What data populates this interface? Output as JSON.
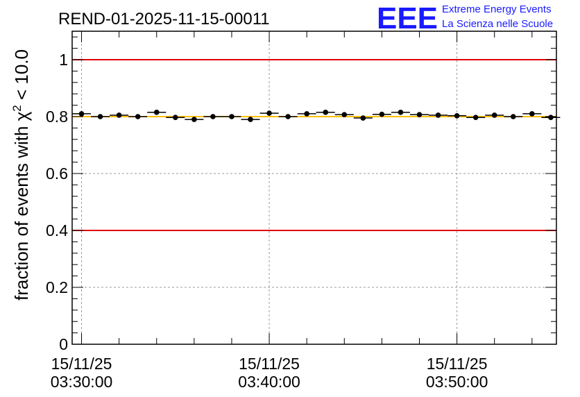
{
  "header": {
    "run_title": "REND-01-2025-11-15-00011",
    "logo_letters": "EEE",
    "logo_line1": "Extreme Energy Events",
    "logo_line2": "La Scienza nelle Scuole"
  },
  "colors": {
    "logo": "#1a1aff",
    "reference_lines": "#e00000",
    "mean_line": "#ffc000",
    "markers": "#000000",
    "grid": "#999999"
  },
  "chart_data": {
    "type": "scatter",
    "title": "REND-01-2025-11-15-00011",
    "xlabel": "",
    "ylabel_main": "fraction of events with χ",
    "ylabel_sup": "2",
    "ylabel_tail": " < 10.0",
    "ylim": [
      0,
      1.1
    ],
    "yticks": [
      0,
      0.2,
      0.4,
      0.6,
      0.8,
      1
    ],
    "ytick_labels": [
      "0",
      "0.2",
      "0.4",
      "0.6",
      "0.8",
      "1"
    ],
    "xlim_minutes_after_0330": [
      -0.5,
      25.3
    ],
    "xticks": [
      {
        "t": 0,
        "line1": "15/11/25",
        "line2": "03:30:00"
      },
      {
        "t": 10,
        "line1": "15/11/25",
        "line2": "03:40:00"
      },
      {
        "t": 20,
        "line1": "15/11/25",
        "line2": "03:50:00"
      }
    ],
    "grid": true,
    "reference_lines": [
      1.0,
      0.4
    ],
    "mean_line": 0.8,
    "bin_width_minutes": 1,
    "points": [
      {
        "time": "03:30",
        "value": 0.81
      },
      {
        "time": "03:31",
        "value": 0.8
      },
      {
        "time": "03:32",
        "value": 0.805
      },
      {
        "time": "03:33",
        "value": 0.8
      },
      {
        "time": "03:34",
        "value": 0.815
      },
      {
        "time": "03:35",
        "value": 0.797
      },
      {
        "time": "03:36",
        "value": 0.79
      },
      {
        "time": "03:37",
        "value": 0.8
      },
      {
        "time": "03:38",
        "value": 0.8
      },
      {
        "time": "03:39",
        "value": 0.79
      },
      {
        "time": "03:40",
        "value": 0.812
      },
      {
        "time": "03:41",
        "value": 0.8
      },
      {
        "time": "03:42",
        "value": 0.81
      },
      {
        "time": "03:43",
        "value": 0.815
      },
      {
        "time": "03:44",
        "value": 0.807
      },
      {
        "time": "03:45",
        "value": 0.795
      },
      {
        "time": "03:46",
        "value": 0.808
      },
      {
        "time": "03:47",
        "value": 0.815
      },
      {
        "time": "03:48",
        "value": 0.807
      },
      {
        "time": "03:49",
        "value": 0.805
      },
      {
        "time": "03:50",
        "value": 0.803
      },
      {
        "time": "03:51",
        "value": 0.797
      },
      {
        "time": "03:52",
        "value": 0.805
      },
      {
        "time": "03:53",
        "value": 0.8
      },
      {
        "time": "03:54",
        "value": 0.81
      },
      {
        "time": "03:55",
        "value": 0.797
      }
    ]
  }
}
